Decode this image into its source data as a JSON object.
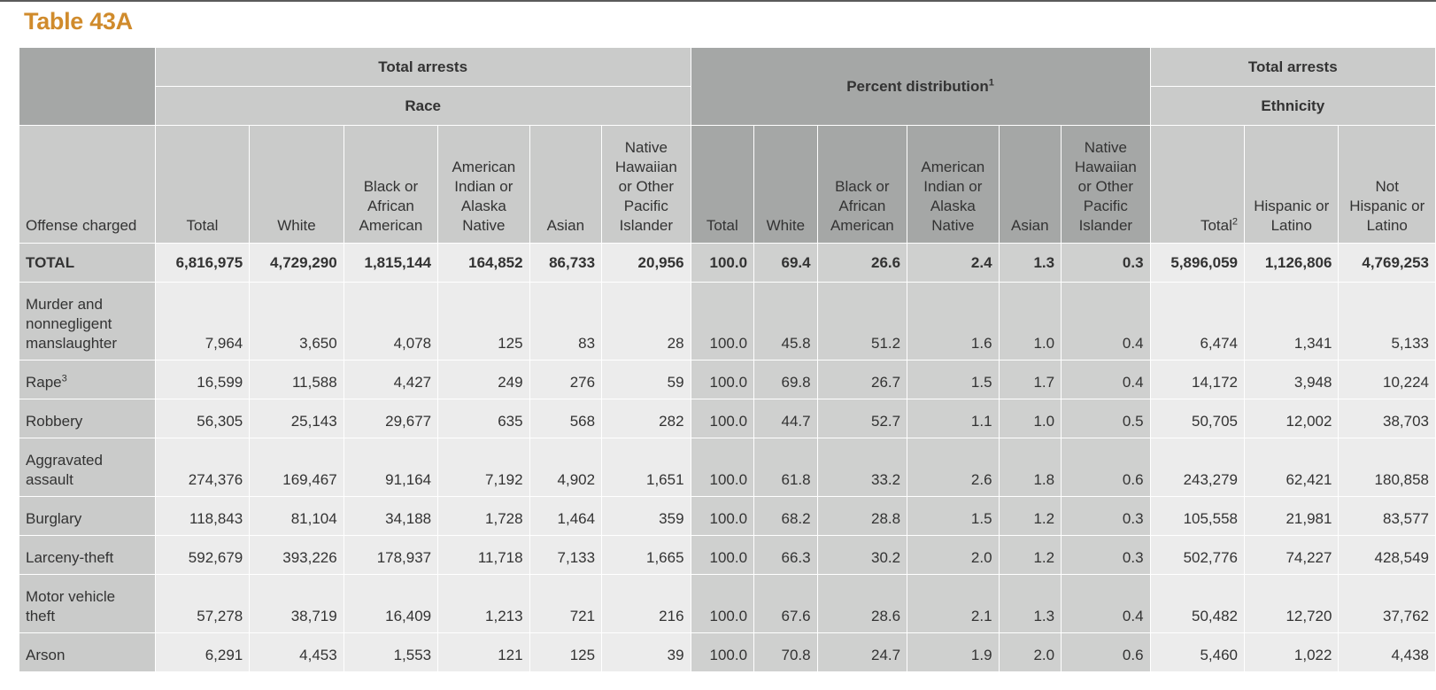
{
  "title": "Table 43A",
  "headers": {
    "total_arrests_race": "Total arrests",
    "race": "Race",
    "percent_distribution": "Percent distribution",
    "percent_distribution_note": "1",
    "total_arrests_ethnicity": "Total arrests",
    "ethnicity": "Ethnicity",
    "offense_charged": "Offense charged",
    "race_columns": [
      "Total",
      "White",
      "Black or African American",
      "American Indian or Alaska Native",
      "Asian",
      "Native Hawaiian or Other Pacific Islander"
    ],
    "pct_columns": [
      "Total",
      "White",
      "Black or African American",
      "American Indian or Alaska Native",
      "Asian",
      "Native Hawaiian or Other Pacific Islander"
    ],
    "eth_total": "Total",
    "eth_total_note": "2",
    "eth_hispanic": "Hispanic or Latino",
    "eth_not_hispanic": "Not Hispanic or Latino"
  },
  "rows": [
    {
      "label": "TOTAL",
      "note": "",
      "values": [
        "6,816,975",
        "4,729,290",
        "1,815,144",
        "164,852",
        "86,733",
        "20,956",
        "100.0",
        "69.4",
        "26.6",
        "2.4",
        "1.3",
        "0.3",
        "5,896,059",
        "1,126,806",
        "4,769,253"
      ]
    },
    {
      "label": "Murder and nonnegligent manslaughter",
      "note": "",
      "values": [
        "7,964",
        "3,650",
        "4,078",
        "125",
        "83",
        "28",
        "100.0",
        "45.8",
        "51.2",
        "1.6",
        "1.0",
        "0.4",
        "6,474",
        "1,341",
        "5,133"
      ]
    },
    {
      "label": "Rape",
      "note": "3",
      "values": [
        "16,599",
        "11,588",
        "4,427",
        "249",
        "276",
        "59",
        "100.0",
        "69.8",
        "26.7",
        "1.5",
        "1.7",
        "0.4",
        "14,172",
        "3,948",
        "10,224"
      ]
    },
    {
      "label": "Robbery",
      "note": "",
      "values": [
        "56,305",
        "25,143",
        "29,677",
        "635",
        "568",
        "282",
        "100.0",
        "44.7",
        "52.7",
        "1.1",
        "1.0",
        "0.5",
        "50,705",
        "12,002",
        "38,703"
      ]
    },
    {
      "label": "Aggravated assault",
      "note": "",
      "values": [
        "274,376",
        "169,467",
        "91,164",
        "7,192",
        "4,902",
        "1,651",
        "100.0",
        "61.8",
        "33.2",
        "2.6",
        "1.8",
        "0.6",
        "243,279",
        "62,421",
        "180,858"
      ]
    },
    {
      "label": "Burglary",
      "note": "",
      "values": [
        "118,843",
        "81,104",
        "34,188",
        "1,728",
        "1,464",
        "359",
        "100.0",
        "68.2",
        "28.8",
        "1.5",
        "1.2",
        "0.3",
        "105,558",
        "21,981",
        "83,577"
      ]
    },
    {
      "label": "Larceny-theft",
      "note": "",
      "values": [
        "592,679",
        "393,226",
        "178,937",
        "11,718",
        "7,133",
        "1,665",
        "100.0",
        "66.3",
        "30.2",
        "2.0",
        "1.2",
        "0.3",
        "502,776",
        "74,227",
        "428,549"
      ]
    },
    {
      "label": "Motor vehicle theft",
      "note": "",
      "values": [
        "57,278",
        "38,719",
        "16,409",
        "1,213",
        "721",
        "216",
        "100.0",
        "67.6",
        "28.6",
        "2.1",
        "1.3",
        "0.4",
        "50,482",
        "12,720",
        "37,762"
      ]
    },
    {
      "label": "Arson",
      "note": "",
      "values": [
        "6,291",
        "4,453",
        "1,553",
        "121",
        "125",
        "39",
        "100.0",
        "70.8",
        "24.7",
        "1.9",
        "2.0",
        "0.6",
        "5,460",
        "1,022",
        "4,438"
      ]
    }
  ]
}
